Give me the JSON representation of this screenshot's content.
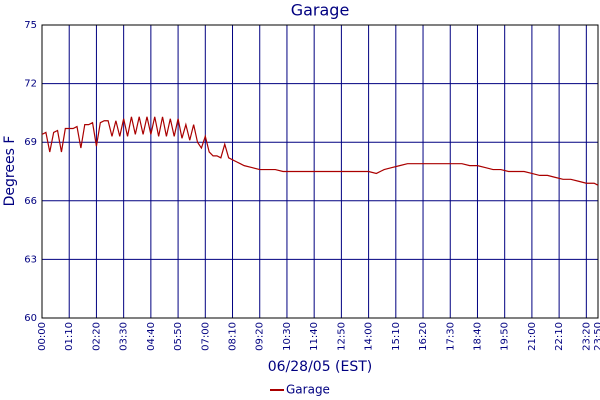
{
  "chart_data": {
    "type": "line",
    "title": "Garage",
    "ylabel": "Degrees F",
    "xlabel": "06/28/05 (EST)",
    "xlim": [
      0,
      1430
    ],
    "ylim": [
      60,
      75
    ],
    "yticks": [
      60,
      63,
      66,
      69,
      72,
      75
    ],
    "xticks": [
      {
        "value": 0,
        "label": "00:00"
      },
      {
        "value": 70,
        "label": "01:10"
      },
      {
        "value": 140,
        "label": "02:20"
      },
      {
        "value": 210,
        "label": "03:30"
      },
      {
        "value": 280,
        "label": "04:40"
      },
      {
        "value": 350,
        "label": "05:50"
      },
      {
        "value": 420,
        "label": "07:00"
      },
      {
        "value": 490,
        "label": "08:10"
      },
      {
        "value": 560,
        "label": "09:20"
      },
      {
        "value": 630,
        "label": "10:30"
      },
      {
        "value": 700,
        "label": "11:40"
      },
      {
        "value": 770,
        "label": "12:50"
      },
      {
        "value": 840,
        "label": "14:00"
      },
      {
        "value": 910,
        "label": "15:10"
      },
      {
        "value": 980,
        "label": "16:20"
      },
      {
        "value": 1050,
        "label": "17:30"
      },
      {
        "value": 1120,
        "label": "18:40"
      },
      {
        "value": 1190,
        "label": "19:50"
      },
      {
        "value": 1260,
        "label": "21:00"
      },
      {
        "value": 1330,
        "label": "22:10"
      },
      {
        "value": 1400,
        "label": "23:20"
      },
      {
        "value": 1430,
        "label": "23:50"
      }
    ],
    "grid": true,
    "legend": "bottom",
    "x": [
      0,
      10,
      20,
      30,
      40,
      50,
      60,
      70,
      80,
      90,
      100,
      110,
      120,
      130,
      140,
      150,
      160,
      170,
      180,
      190,
      200,
      210,
      220,
      230,
      240,
      250,
      260,
      270,
      280,
      290,
      300,
      310,
      320,
      330,
      340,
      350,
      360,
      370,
      380,
      390,
      400,
      410,
      420,
      430,
      440,
      450,
      460,
      470,
      480,
      490,
      500,
      510,
      520,
      540,
      560,
      580,
      600,
      620,
      640,
      660,
      680,
      700,
      720,
      740,
      760,
      780,
      800,
      820,
      840,
      860,
      880,
      900,
      920,
      940,
      960,
      980,
      1000,
      1020,
      1040,
      1060,
      1080,
      1100,
      1120,
      1140,
      1160,
      1180,
      1200,
      1220,
      1240,
      1260,
      1280,
      1300,
      1320,
      1340,
      1360,
      1380,
      1400,
      1420,
      1430
    ],
    "series": [
      {
        "name": "Garage",
        "color": "#aa0000",
        "values": [
          69.4,
          69.5,
          68.5,
          69.5,
          69.6,
          68.5,
          69.7,
          69.7,
          69.7,
          69.8,
          68.7,
          69.9,
          69.9,
          70.0,
          68.8,
          70.0,
          70.1,
          70.1,
          69.3,
          70.1,
          69.3,
          70.2,
          69.3,
          70.3,
          69.4,
          70.3,
          69.4,
          70.3,
          69.4,
          70.3,
          69.3,
          70.3,
          69.3,
          70.2,
          69.3,
          70.2,
          69.2,
          69.9,
          69.1,
          69.9,
          69.0,
          68.7,
          69.3,
          68.5,
          68.3,
          68.3,
          68.2,
          68.9,
          68.2,
          68.1,
          68.0,
          67.9,
          67.8,
          67.7,
          67.6,
          67.6,
          67.6,
          67.5,
          67.5,
          67.5,
          67.5,
          67.5,
          67.5,
          67.5,
          67.5,
          67.5,
          67.5,
          67.5,
          67.5,
          67.4,
          67.6,
          67.7,
          67.8,
          67.9,
          67.9,
          67.9,
          67.9,
          67.9,
          67.9,
          67.9,
          67.9,
          67.8,
          67.8,
          67.7,
          67.6,
          67.6,
          67.5,
          67.5,
          67.5,
          67.4,
          67.3,
          67.3,
          67.2,
          67.1,
          67.1,
          67.0,
          66.9,
          66.9,
          66.8
        ]
      }
    ]
  }
}
